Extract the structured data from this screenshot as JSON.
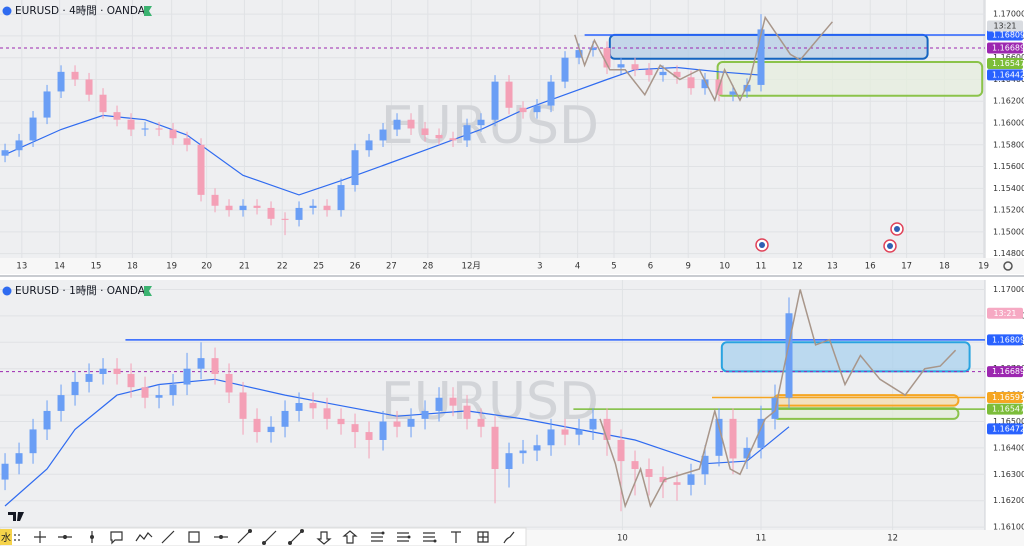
{
  "chart_data": [
    {
      "type": "candlestick",
      "title": "EURUSD · 4時間 · OANDA",
      "watermark": "EURUSD",
      "countdown": "13:21",
      "up_color": "#6a9ef5",
      "down_color": "#f4a0b6",
      "grid": true,
      "xlim": [
        -0.36,
        70
      ],
      "ylim": [
        1.1476,
        1.1713
      ],
      "xticks": [
        {
          "value": 1.2,
          "label": "13"
        },
        {
          "value": 3.9,
          "label": "14"
        },
        {
          "value": 6.5,
          "label": "15"
        },
        {
          "value": 9.1,
          "label": "18"
        },
        {
          "value": 11.9,
          "label": "19"
        },
        {
          "value": 14.4,
          "label": "20"
        },
        {
          "value": 17.1,
          "label": "21"
        },
        {
          "value": 19.8,
          "label": "22"
        },
        {
          "value": 22.4,
          "label": "25"
        },
        {
          "value": 25,
          "label": "26"
        },
        {
          "value": 27.6,
          "label": "27"
        },
        {
          "value": 30.2,
          "label": "28"
        },
        {
          "value": 33.3,
          "label": "12月"
        },
        {
          "value": 38.2,
          "label": "3"
        },
        {
          "value": 40.9,
          "label": "4"
        },
        {
          "value": 43.5,
          "label": "5"
        },
        {
          "value": 46.1,
          "label": "6"
        },
        {
          "value": 48.8,
          "label": "9"
        },
        {
          "value": 51.4,
          "label": "10"
        },
        {
          "value": 54,
          "label": "11"
        },
        {
          "value": 56.6,
          "label": "12"
        },
        {
          "value": 59.1,
          "label": "13"
        },
        {
          "value": 61.8,
          "label": "16"
        },
        {
          "value": 64.4,
          "label": "17"
        },
        {
          "value": 67.1,
          "label": "18"
        },
        {
          "value": 69.9,
          "label": "19"
        }
      ],
      "yticks": [
        {
          "value": 1.148,
          "label": "1.14800"
        },
        {
          "value": 1.15,
          "label": "1.15000"
        },
        {
          "value": 1.152,
          "label": "1.15200"
        },
        {
          "value": 1.154,
          "label": "1.15400"
        },
        {
          "value": 1.156,
          "label": "1.15600"
        },
        {
          "value": 1.158,
          "label": "1.15800"
        },
        {
          "value": 1.16,
          "label": "1.16000"
        },
        {
          "value": 1.162,
          "label": "1.16200"
        },
        {
          "value": 1.164,
          "label": "1.16400"
        },
        {
          "value": 1.166,
          "label": "1.16600"
        },
        {
          "value": 1.168,
          "label": "1.16800"
        },
        {
          "value": 1.17,
          "label": "1.17000"
        }
      ],
      "x": [
        0,
        1,
        2,
        3,
        4,
        5,
        6,
        7,
        8,
        9,
        10,
        11,
        12,
        13,
        14,
        15,
        16,
        17,
        18,
        19,
        20,
        21,
        22,
        23,
        24,
        25,
        26,
        27,
        28,
        29,
        30,
        31,
        32,
        33,
        34,
        35,
        36,
        37,
        38,
        39,
        40,
        41,
        42,
        43,
        44,
        45,
        46,
        47,
        48,
        49,
        50,
        51,
        52,
        53,
        54
      ],
      "open": [
        1.157,
        1.1575,
        1.1584,
        1.1605,
        1.1629,
        1.1647,
        1.164,
        1.1626,
        1.161,
        1.1603,
        1.1594,
        1.1595,
        1.1594,
        1.1586,
        1.158,
        1.1534,
        1.1524,
        1.152,
        1.1524,
        1.1522,
        1.1512,
        1.1511,
        1.1522,
        1.1524,
        1.152,
        1.1543,
        1.1575,
        1.1584,
        1.1594,
        1.1603,
        1.1595,
        1.1589,
        1.1586,
        1.1584,
        1.1598,
        1.1603,
        1.1638,
        1.1614,
        1.161,
        1.1616,
        1.1638,
        1.166,
        1.1667,
        1.1669,
        1.1651,
        1.1654,
        1.1649,
        1.1644,
        1.1647,
        1.1642,
        1.1632,
        1.164,
        1.1626,
        1.1629,
        1.1635
      ],
      "high": [
        1.1581,
        1.159,
        1.1611,
        1.1635,
        1.1653,
        1.1653,
        1.1646,
        1.1632,
        1.1616,
        1.1609,
        1.1601,
        1.1601,
        1.16,
        1.1592,
        1.1586,
        1.154,
        1.153,
        1.153,
        1.153,
        1.1528,
        1.1518,
        1.1528,
        1.153,
        1.153,
        1.1549,
        1.1581,
        1.159,
        1.16,
        1.1609,
        1.1609,
        1.1601,
        1.1595,
        1.1592,
        1.1604,
        1.1609,
        1.1644,
        1.1644,
        1.162,
        1.1622,
        1.1644,
        1.1666,
        1.1673,
        1.1675,
        1.1675,
        1.166,
        1.166,
        1.1655,
        1.1653,
        1.1653,
        1.1648,
        1.1646,
        1.1646,
        1.1635,
        1.1641,
        1.17
      ],
      "low": [
        1.1564,
        1.1569,
        1.1578,
        1.1599,
        1.1623,
        1.1634,
        1.162,
        1.1604,
        1.1597,
        1.1588,
        1.1588,
        1.1588,
        1.158,
        1.1574,
        1.1528,
        1.1518,
        1.1514,
        1.1514,
        1.1516,
        1.1506,
        1.1497,
        1.1505,
        1.1516,
        1.1514,
        1.1514,
        1.1537,
        1.1569,
        1.1578,
        1.1588,
        1.1589,
        1.1583,
        1.158,
        1.1578,
        1.1578,
        1.1592,
        1.1597,
        1.1608,
        1.1604,
        1.1604,
        1.161,
        1.1632,
        1.1654,
        1.1661,
        1.1645,
        1.1645,
        1.1643,
        1.1638,
        1.1638,
        1.1636,
        1.1626,
        1.1626,
        1.162,
        1.162,
        1.1623,
        1.1629
      ],
      "close": [
        1.1575,
        1.1584,
        1.1605,
        1.1629,
        1.1647,
        1.164,
        1.1626,
        1.161,
        1.1603,
        1.1594,
        1.1595,
        1.1594,
        1.1586,
        1.158,
        1.1534,
        1.1524,
        1.152,
        1.1524,
        1.1522,
        1.1512,
        1.1511,
        1.1522,
        1.1524,
        1.152,
        1.1543,
        1.1575,
        1.1584,
        1.1594,
        1.1603,
        1.1595,
        1.1589,
        1.1586,
        1.1584,
        1.1598,
        1.1603,
        1.1638,
        1.1614,
        1.161,
        1.1616,
        1.1638,
        1.166,
        1.1667,
        1.1669,
        1.1651,
        1.1654,
        1.1649,
        1.1644,
        1.1647,
        1.1642,
        1.1632,
        1.164,
        1.1626,
        1.1629,
        1.1635,
        1.1686
      ],
      "ma": {
        "color": "#2f6bf0",
        "x": [
          0,
          4,
          7,
          10,
          13,
          17,
          21,
          24,
          27,
          30,
          34,
          37,
          40,
          43,
          45,
          48,
          51,
          54
        ],
        "values": [
          1.1571,
          1.1594,
          1.1607,
          1.1603,
          1.1589,
          1.1552,
          1.1534,
          1.1547,
          1.1561,
          1.1575,
          1.1594,
          1.1612,
          1.1626,
          1.164,
          1.1649,
          1.1651,
          1.1647,
          1.1644
        ]
      },
      "projection": {
        "color": "#a8968a",
        "x": [
          40.7,
          41.4,
          42.1,
          43.2,
          44.3,
          45.7,
          46.8,
          48.2,
          49.6,
          50.7,
          51.4,
          52.5,
          53.2,
          54.3,
          56.1,
          56.8,
          59.1
        ],
        "values": [
          1.1681,
          1.1653,
          1.1676,
          1.1649,
          1.1649,
          1.1626,
          1.1653,
          1.164,
          1.1649,
          1.1621,
          1.1649,
          1.1621,
          1.164,
          1.1697,
          1.1663,
          1.1658,
          1.1693
        ]
      },
      "zones": [
        {
          "stroke": "#1565c0",
          "fill": "#b5cde6",
          "x": [
            43.2,
            65.9
          ],
          "y": [
            1.1659,
            1.1681
          ]
        },
        {
          "stroke": "#8bc34a",
          "fill": "#e6eedd",
          "x": [
            50.9,
            69.8
          ],
          "y": [
            1.1625,
            1.1656
          ]
        }
      ],
      "levels": [
        {
          "value": 1.16809,
          "label": "1.16809",
          "color": "#2962ff",
          "line": true,
          "from": 41.4,
          "dashed": false
        },
        {
          "value": 1.16689,
          "label": "1.16689",
          "color": "#9c27b0",
          "line": true,
          "dashed": true
        },
        {
          "value": 1.16547,
          "label": "1.16547",
          "color": "#7cbd3a",
          "line": false
        },
        {
          "value": 1.16442,
          "label": "1.16442",
          "color": "#2962ff",
          "line": false
        }
      ]
    },
    {
      "type": "candlestick",
      "title": "EURUSD · 1時間 · OANDA",
      "watermark": "EURUSD",
      "countdown": "13:21",
      "up_color": "#6a9ef5",
      "down_color": "#f4a0b6",
      "grid": true,
      "xlim": [
        -0.36,
        70
      ],
      "ylim": [
        1.16089,
        1.17036
      ],
      "xticks": [
        {
          "value": 44.1,
          "label": "10"
        },
        {
          "value": 54,
          "label": "11"
        },
        {
          "value": 63.4,
          "label": "12"
        }
      ],
      "yticks": [
        {
          "value": 1.161,
          "label": "1.16100"
        },
        {
          "value": 1.162,
          "label": "1.16200"
        },
        {
          "value": 1.163,
          "label": "1.16300"
        },
        {
          "value": 1.164,
          "label": "1.16400"
        },
        {
          "value": 1.165,
          "label": "1.16500"
        },
        {
          "value": 1.166,
          "label": "1.16600"
        },
        {
          "value": 1.167,
          "label": "1.16700"
        },
        {
          "value": 1.168,
          "label": "1.16800"
        },
        {
          "value": 1.169,
          "label": "1.16900"
        },
        {
          "value": 1.17,
          "label": "1.17000"
        }
      ],
      "x": [
        0,
        1,
        2,
        3,
        4,
        5,
        6,
        7,
        8,
        9,
        10,
        11,
        12,
        13,
        14,
        15,
        16,
        17,
        18,
        19,
        20,
        21,
        22,
        23,
        24,
        25,
        26,
        27,
        28,
        29,
        30,
        31,
        32,
        33,
        34,
        35,
        36,
        37,
        38,
        39,
        40,
        41,
        42,
        43,
        44,
        45,
        46,
        47,
        48,
        49,
        50,
        51,
        52,
        53,
        54,
        55,
        56
      ],
      "open": [
        1.1628,
        1.1634,
        1.1638,
        1.1647,
        1.1654,
        1.166,
        1.1665,
        1.1668,
        1.167,
        1.1668,
        1.1663,
        1.1659,
        1.166,
        1.1664,
        1.167,
        1.1674,
        1.1668,
        1.1661,
        1.1651,
        1.1646,
        1.1648,
        1.1654,
        1.1657,
        1.1655,
        1.1651,
        1.1649,
        1.1646,
        1.1643,
        1.165,
        1.1648,
        1.1651,
        1.1654,
        1.1659,
        1.1656,
        1.1651,
        1.1648,
        1.1632,
        1.1638,
        1.1639,
        1.1641,
        1.1647,
        1.1645,
        1.1647,
        1.1651,
        1.1643,
        1.1635,
        1.1632,
        1.1629,
        1.1627,
        1.1626,
        1.163,
        1.1637,
        1.1651,
        1.1636,
        1.164,
        1.1651,
        1.1659
      ],
      "high": [
        1.1638,
        1.1642,
        1.1651,
        1.1658,
        1.1664,
        1.1669,
        1.1672,
        1.1674,
        1.1674,
        1.1672,
        1.1667,
        1.1664,
        1.1668,
        1.1676,
        1.168,
        1.1678,
        1.1672,
        1.1665,
        1.1655,
        1.1652,
        1.1658,
        1.1661,
        1.1661,
        1.1659,
        1.1655,
        1.1653,
        1.165,
        1.1654,
        1.1654,
        1.1655,
        1.1658,
        1.1663,
        1.1663,
        1.166,
        1.1655,
        1.1652,
        1.1642,
        1.1643,
        1.1645,
        1.1651,
        1.1651,
        1.1651,
        1.1655,
        1.1655,
        1.1647,
        1.1639,
        1.1636,
        1.1633,
        1.1631,
        1.1634,
        1.1641,
        1.1655,
        1.1655,
        1.1644,
        1.1656,
        1.1664,
        1.1697
      ],
      "low": [
        1.1624,
        1.163,
        1.1634,
        1.1643,
        1.165,
        1.1656,
        1.1661,
        1.1664,
        1.1664,
        1.1659,
        1.1655,
        1.1655,
        1.1656,
        1.166,
        1.1666,
        1.1664,
        1.1657,
        1.1645,
        1.1642,
        1.1642,
        1.1644,
        1.165,
        1.1651,
        1.1647,
        1.1645,
        1.164,
        1.1636,
        1.1639,
        1.1644,
        1.1644,
        1.1647,
        1.165,
        1.1652,
        1.1647,
        1.1644,
        1.1619,
        1.1625,
        1.1634,
        1.1635,
        1.1637,
        1.1641,
        1.1641,
        1.1643,
        1.1637,
        1.1616,
        1.1622,
        1.1622,
        1.1621,
        1.162,
        1.1622,
        1.1626,
        1.1633,
        1.163,
        1.1632,
        1.1636,
        1.1647,
        1.1655
      ],
      "close": [
        1.1634,
        1.1638,
        1.1647,
        1.1654,
        1.166,
        1.1665,
        1.1668,
        1.167,
        1.1668,
        1.1663,
        1.1659,
        1.166,
        1.1664,
        1.167,
        1.1674,
        1.1668,
        1.1661,
        1.1651,
        1.1646,
        1.1648,
        1.1654,
        1.1657,
        1.1655,
        1.1651,
        1.1649,
        1.1646,
        1.1643,
        1.165,
        1.1648,
        1.1651,
        1.1654,
        1.1659,
        1.1656,
        1.1651,
        1.1648,
        1.1632,
        1.1638,
        1.1639,
        1.1641,
        1.1647,
        1.1645,
        1.1647,
        1.1651,
        1.1643,
        1.1635,
        1.1632,
        1.1629,
        1.1627,
        1.1626,
        1.163,
        1.1637,
        1.1651,
        1.1636,
        1.164,
        1.1651,
        1.1659,
        1.1691
      ],
      "ma": {
        "color": "#2f6bf0",
        "x": [
          0,
          3,
          5,
          8,
          11,
          15,
          20,
          24,
          28,
          33,
          37,
          41,
          45,
          50,
          53,
          56
        ],
        "values": [
          1.1618,
          1.1632,
          1.1647,
          1.166,
          1.1664,
          1.1666,
          1.166,
          1.1656,
          1.1652,
          1.1654,
          1.1651,
          1.1647,
          1.1643,
          1.1634,
          1.1635,
          1.1648
        ]
      },
      "projection": {
        "color": "#a8968a",
        "x": [
          42.5,
          43.6,
          44.3,
          45.4,
          46.1,
          47.1,
          49.6,
          50.7,
          51.8,
          52.5,
          54.3,
          55,
          56.8,
          57.9,
          58.9,
          60,
          61.1,
          62.5,
          64.3,
          65.7,
          66.8,
          67.9
        ],
        "values": [
          1.1651,
          1.1634,
          1.1618,
          1.1632,
          1.1618,
          1.1628,
          1.1632,
          1.1654,
          1.1632,
          1.163,
          1.1651,
          1.1654,
          1.17,
          1.1679,
          1.1681,
          1.1664,
          1.1675,
          1.1666,
          1.166,
          1.167,
          1.1671,
          1.1677
        ]
      },
      "zones": [
        {
          "stroke": "#29a3e0",
          "fill": "#a9d2ee",
          "x": [
            51.2,
            68.9
          ],
          "y": [
            1.1669,
            1.168
          ]
        },
        {
          "stroke": "#f5a623",
          "fill": "#f3dcae",
          "x": [
            54.9,
            68.1
          ],
          "y": [
            1.1656,
            1.166
          ]
        },
        {
          "stroke": "#8bc34a",
          "fill": "#e3ecd8",
          "x": [
            54.9,
            68.1
          ],
          "y": [
            1.1651,
            1.1655
          ]
        }
      ],
      "levels": [
        {
          "value": 1.16809,
          "label": "1.16809",
          "color": "#2962ff",
          "line": true,
          "from": 8.6,
          "dashed": false
        },
        {
          "value": 1.16689,
          "label": "1.16689",
          "color": "#9c27b0",
          "line": true,
          "dashed": true
        },
        {
          "value": 1.16591,
          "label": "1.16591",
          "color": "#f5a623",
          "line": true,
          "from": 50.5,
          "dashed": false
        },
        {
          "value": 1.16547,
          "label": "1.16547",
          "color": "#7cbd3a",
          "line": true,
          "from": 40.6,
          "dashed": false
        },
        {
          "value": 1.16472,
          "label": "1.16472",
          "color": "#2962ff",
          "line": false
        }
      ]
    }
  ],
  "toolbar": {
    "label": "水"
  }
}
